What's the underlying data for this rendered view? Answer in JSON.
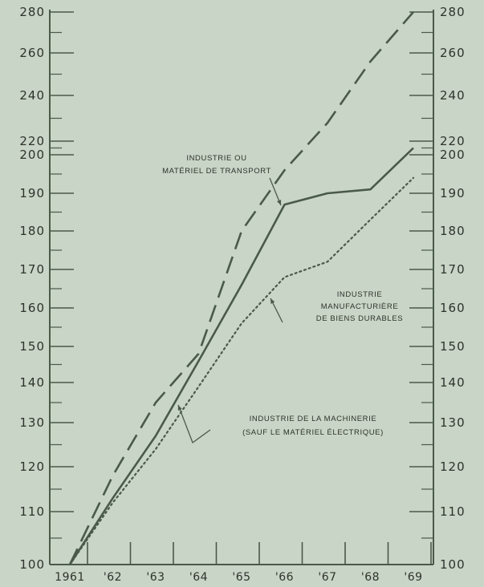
{
  "chart_data": {
    "type": "line",
    "x": [
      "1961",
      "'62",
      "'63",
      "'64",
      "'65",
      "'66",
      "'67",
      "'68",
      "'69"
    ],
    "ylim": [
      100,
      280
    ],
    "y_ticks": [
      "100",
      "110",
      "120",
      "130",
      "140",
      "150",
      "160",
      "170",
      "180",
      "190",
      "200",
      "220",
      "240",
      "260",
      "280"
    ],
    "series": [
      {
        "name": "INDUSTRIE OU MATÉRIEL DE TRANSPORT",
        "style": "dashed",
        "values": [
          100,
          118,
          135,
          148,
          180,
          196,
          228,
          256,
          280
        ]
      },
      {
        "name": "INDUSTRIE DE LA MACHINERIE (SAUF LE MATÉRIEL ÉLECTRIQUE)",
        "style": "solid",
        "values": [
          100,
          113,
          127,
          146,
          166,
          187,
          190,
          191,
          210
        ]
      },
      {
        "name": "INDUSTRIE MANUFACTURIÈRE DE BIENS DURABLES",
        "style": "dotted",
        "values": [
          100,
          112,
          124,
          139,
          156,
          168,
          172,
          183,
          194
        ]
      }
    ],
    "annotations": [
      {
        "lines": [
          "INDUSTRIE OU",
          "MATÉRIEL DE TRANSPORT"
        ]
      },
      {
        "lines": [
          "INDUSTRIE",
          "MANUFACTURIÈRE",
          "DE BIENS DURABLES"
        ]
      },
      {
        "lines": [
          "INDUSTRIE DE LA MACHINERIE",
          "(SAUF LE MATÉRIEL ÉLECTRIQUE)"
        ]
      }
    ],
    "grid": false,
    "line_color": "#4a5a4a"
  }
}
